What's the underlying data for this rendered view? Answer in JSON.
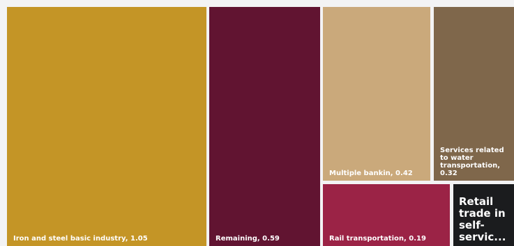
{
  "chart_data": {
    "type": "treemap",
    "items": [
      {
        "label": "Iron and steel basic industry, 1.05",
        "name": "Iron and steel basic industry",
        "value": 1.05,
        "color": "#c49526"
      },
      {
        "label": "Remaining, 0.59",
        "name": "Remaining",
        "value": 0.59,
        "color": "#611431"
      },
      {
        "label": "Multiple bankin, 0.42",
        "name": "Multiple bankin",
        "value": 0.42,
        "color": "#caa97b"
      },
      {
        "label": "Services related to water transportation, 0.32",
        "name": "Services related to water transportation",
        "value": 0.32,
        "color": "#7f674b"
      },
      {
        "label": "Rail transportation, 0.19",
        "name": "Rail transportation",
        "value": 0.19,
        "color": "#9b2346"
      },
      {
        "label": "Retail trade in self-servic...",
        "name": "Retail trade in self-servic...",
        "value": null,
        "color": "#1b1c1e"
      }
    ]
  }
}
